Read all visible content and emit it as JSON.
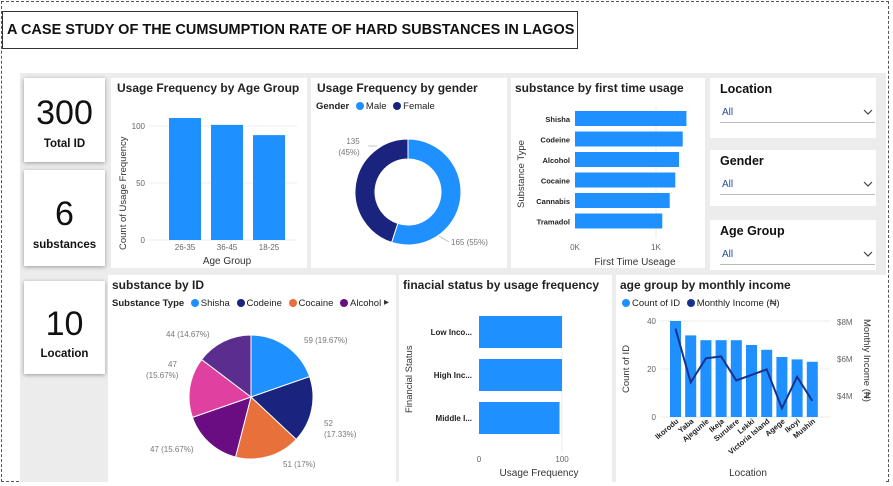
{
  "title": "A CASE STUDY OF THE CUMSUMPTION RATE OF HARD SUBSTANCES IN LAGOS",
  "kpis": [
    {
      "value": "300",
      "label": "Total ID"
    },
    {
      "value": "6",
      "label": "substances"
    },
    {
      "value": "10",
      "label": "Location"
    }
  ],
  "colors": {
    "blue": "#1e90ff",
    "navy": "#1a237e",
    "orange": "#e8703a",
    "purple": "#6a0d83",
    "pink": "#e040a0",
    "plum": "#5b2d8e",
    "line": "#17328c"
  },
  "age_chart": {
    "title": "Usage Frequency by Age Group",
    "chart_data": {
      "type": "bar",
      "categories": [
        "26-35",
        "36-45",
        "18-25"
      ],
      "values": [
        107,
        101,
        92
      ],
      "xlabel": "Age Group",
      "ylabel": "Count of Usage Frequency",
      "ylim": [
        0,
        115
      ],
      "yticks": [
        "0",
        "50",
        "100"
      ]
    }
  },
  "gender_chart": {
    "title": "Usage Frequency by gender",
    "legend_title": "Gender",
    "chart_data": {
      "type": "pie",
      "series": [
        {
          "name": "Male",
          "value": 165,
          "label": "165 (55%)"
        },
        {
          "name": "Female",
          "value": 135,
          "label": "135 (45%)"
        }
      ]
    },
    "female_label_line1": "135",
    "female_label_line2": "(45%)"
  },
  "first_use_chart": {
    "title": "substance by first time usage",
    "chart_data": {
      "type": "bar",
      "categories": [
        "Shisha",
        "Codeine",
        "Alcohol",
        "Cocaine",
        "Cannabis",
        "Tramadol"
      ],
      "values": [
        1200,
        1160,
        1120,
        1080,
        1020,
        940
      ],
      "xlabel": "First Time Useage",
      "ylabel": "Substance Type",
      "xlim": [
        0,
        1400
      ],
      "xticks": [
        "0K",
        "1K"
      ]
    }
  },
  "slicers": [
    {
      "title": "Location",
      "value": "All"
    },
    {
      "title": "Gender",
      "value": "All"
    },
    {
      "title": "Age Group",
      "value": "All"
    }
  ],
  "substance_chart": {
    "title": "substance by ID",
    "legend_title": "Substance Type",
    "legend_items": [
      "Shisha",
      "Codeine",
      "Cocaine",
      "Alcohol"
    ],
    "more_arrow": "▸",
    "chart_data": {
      "type": "pie",
      "series": [
        {
          "name": "Shisha",
          "value": 59,
          "label": "59 (19.67%)"
        },
        {
          "name": "Codeine",
          "value": 52,
          "label": "52 (17.33%)"
        },
        {
          "name": "Cocaine",
          "value": 51,
          "label": "51 (17%)"
        },
        {
          "name": "Alcohol",
          "value": 47,
          "label": "47 (15.67%)"
        },
        {
          "name": "",
          "value": 47,
          "label": "47 (15.67%)"
        },
        {
          "name": "",
          "value": 44,
          "label": "44 (14.67%)"
        }
      ]
    },
    "label_59": "59 (19.67%)",
    "label_52a": "52",
    "label_52b": "(17.33%)",
    "label_51": "51 (17%)",
    "label_47a": "47 (15.67%)",
    "label_47b1": "47",
    "label_47b2": "(15.67%)",
    "label_44": "44 (14.67%)"
  },
  "financial_chart": {
    "title": "finacial status by usage frequency",
    "chart_data": {
      "type": "bar",
      "categories": [
        "Low Inco...",
        "High Inc...",
        "Middle I..."
      ],
      "values": [
        103,
        102,
        97
      ],
      "xlabel": "Usage Frequency",
      "ylabel": "Financial Status",
      "xlim": [
        0,
        110
      ],
      "xticks": [
        "0",
        "100"
      ]
    }
  },
  "income_chart": {
    "title": "age group by monthly income",
    "legend_items": [
      "Count of ID",
      "Monthly Income (₦)"
    ],
    "chart_data": {
      "type": "bar",
      "categories": [
        "Ikorodu",
        "Yaba",
        "Ajegunle",
        "Ikeja",
        "Surulere",
        "Lekki",
        "Victoria Island",
        "Agege",
        "Ikoyi",
        "Mushin"
      ],
      "series": [
        {
          "name": "Count of ID",
          "values": [
            40,
            34,
            32,
            32,
            32,
            30,
            28,
            25,
            24,
            23
          ]
        },
        {
          "name": "Monthly Income (₦)",
          "values": [
            7.8,
            4.9,
            6.2,
            6.3,
            5.0,
            5.3,
            5.6,
            3.5,
            5.2,
            3.9
          ]
        }
      ],
      "xlabel": "Location",
      "ylabel": "Count of ID",
      "y2label": "Monthly Income (₦)",
      "ylim": [
        0,
        42
      ],
      "y2lim": [
        3,
        8.2
      ],
      "yticks": [
        "0",
        "20",
        "40"
      ],
      "y2ticks": [
        "$4M",
        "$6M",
        "$8M"
      ]
    }
  }
}
